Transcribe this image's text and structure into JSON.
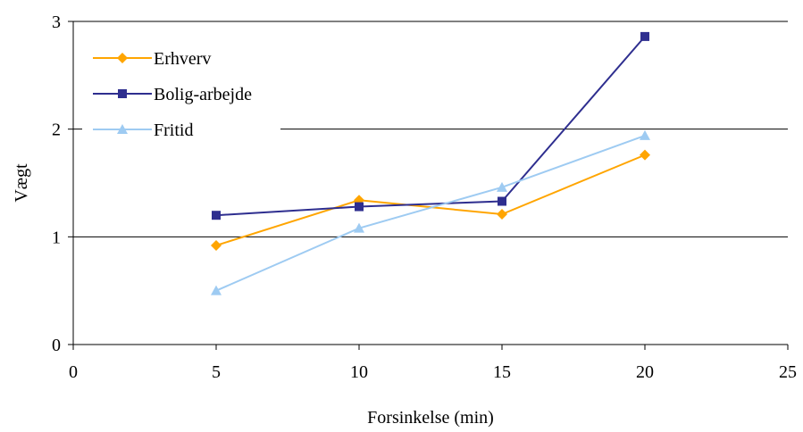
{
  "chart_data": {
    "type": "line",
    "xlabel": "Forsinkelse (min)",
    "ylabel": "Vægt",
    "xlim": [
      0,
      25
    ],
    "ylim": [
      0,
      3
    ],
    "xticks": [
      "0",
      "5",
      "10",
      "15",
      "20",
      "25"
    ],
    "yticks": [
      "0",
      "1",
      "2",
      "3"
    ],
    "grid": "horizontal",
    "legend_position": "top-left",
    "series": [
      {
        "name": "Erhverv",
        "color": "#FFA500",
        "marker": "diamond",
        "x": [
          5,
          10,
          15,
          20
        ],
        "values": [
          0.92,
          1.34,
          1.21,
          1.76
        ]
      },
      {
        "name": "Bolig-arbejde",
        "color": "#2E2E8F",
        "marker": "square",
        "x": [
          5,
          10,
          15,
          20
        ],
        "values": [
          1.2,
          1.28,
          1.33,
          2.86
        ]
      },
      {
        "name": "Fritid",
        "color": "#9ECBF2",
        "marker": "triangle",
        "x": [
          5,
          10,
          15,
          20
        ],
        "values": [
          0.5,
          1.08,
          1.46,
          1.94
        ]
      }
    ]
  }
}
